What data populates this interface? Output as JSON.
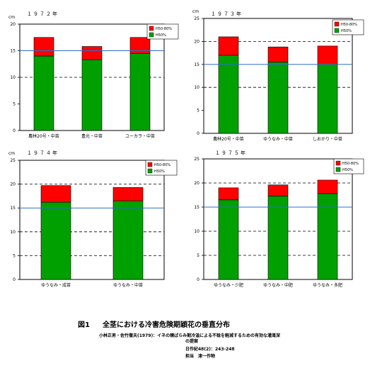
{
  "chart_data": [
    {
      "type": "bar",
      "stacked": true,
      "title": "１９７２年",
      "ylabel": "cm",
      "ylim": [
        0,
        20
      ],
      "yticks": [
        0,
        5,
        10,
        15,
        20
      ],
      "grid": "dashed at 10 and 20",
      "reference_line": 15,
      "legend_position": "top-right",
      "categories": [
        "農林20号・中苗",
        "豊光・中苗",
        "ユーカラ・中苗"
      ],
      "series": [
        {
          "name": "H50%",
          "color": "#00a000",
          "values": [
            14.0,
            13.3,
            14.5
          ]
        },
        {
          "name": "H50-80%",
          "color": "#ff0000",
          "values": [
            3.5,
            2.5,
            3.0
          ]
        }
      ]
    },
    {
      "type": "bar",
      "stacked": true,
      "title": "１９７３年",
      "ylabel": "cm",
      "ylim": [
        0,
        25
      ],
      "yticks": [
        0,
        5,
        10,
        15,
        20,
        25
      ],
      "grid": "dashed at 10 and 20",
      "reference_line": 15,
      "legend_position": "top-right",
      "categories": [
        "農林20号・中苗",
        "ゆうなみ・中苗",
        "しおかり・中苗"
      ],
      "series": [
        {
          "name": "H50%",
          "color": "#00a000",
          "values": [
            17.0,
            15.5,
            15.0
          ]
        },
        {
          "name": "H50-80%",
          "color": "#ff0000",
          "values": [
            4.0,
            3.3,
            4.0
          ]
        }
      ]
    },
    {
      "type": "bar",
      "stacked": true,
      "title": "１９７４年",
      "ylabel": "cm",
      "ylim": [
        0,
        25
      ],
      "yticks": [
        0,
        5,
        10,
        15,
        20,
        25
      ],
      "grid": "dashed at 5, 10, 20, 25",
      "reference_line": 15,
      "legend_position": "top-right",
      "categories": [
        "ゆうなみ・成苗",
        "ゆうなみ・中苗"
      ],
      "series": [
        {
          "name": "H50%",
          "color": "#00a000",
          "values": [
            16.2,
            16.5
          ]
        },
        {
          "name": "H50-80%",
          "color": "#ff0000",
          "values": [
            3.5,
            2.8
          ]
        }
      ]
    },
    {
      "type": "bar",
      "stacked": true,
      "title": "１９７５年",
      "ylabel": "",
      "ylim": [
        0,
        25
      ],
      "yticks": [
        0,
        5,
        10,
        15,
        20,
        25
      ],
      "grid": "dashed at 5, 10, 20, 25",
      "reference_line": 15,
      "legend_position": "top-right",
      "categories": [
        "ゆうなみ・少肥",
        "ゆうなみ・中肥",
        "ゆうなみ・多肥"
      ],
      "series": [
        {
          "name": "H50%",
          "color": "#00a000",
          "values": [
            16.5,
            17.3,
            17.8
          ]
        },
        {
          "name": "H50-80%",
          "color": "#ff0000",
          "values": [
            2.5,
            2.3,
            2.8
          ]
        }
      ]
    }
  ],
  "figure": {
    "number": "図1",
    "title": "全茎における冷害危険期穎花の垂直分布"
  },
  "source": {
    "line1": "小林正男・佐竹徹夫(1979)：イネの穂ばらみ期冷温による不稔を軽減するための有効な灌漑深",
    "line2": "の提案",
    "line3": "日作紀48(2)：243-248",
    "line4": "担当　津一作物"
  }
}
